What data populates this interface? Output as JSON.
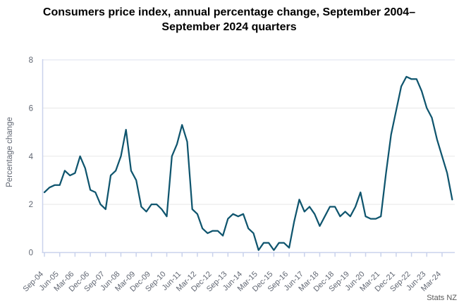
{
  "chart_data": {
    "type": "line",
    "title": "Consumers price index, annual percentage change, September 2004–September 2024 quarters",
    "ylabel": "Percentage change",
    "xlabel": "",
    "source": "Stats NZ",
    "ylim": [
      0,
      8
    ],
    "yticks": [
      0,
      2,
      4,
      6,
      8
    ],
    "grid": "horizontal",
    "legend": "none",
    "x_start": "Sep-04",
    "x_end": "Sep-24",
    "x_frequency": "quarterly",
    "x_tick_step": 3,
    "x_tick_labels": [
      "Sep-04",
      "Jun-05",
      "Mar-06",
      "Dec-06",
      "Sep-07",
      "Jun-08",
      "Mar-09",
      "Dec-09",
      "Sep-10",
      "Jun-11",
      "Mar-12",
      "Dec-12",
      "Sep-13",
      "Jun-14",
      "Mar-15",
      "Dec-15",
      "Sep-16",
      "Jun-17",
      "Mar-18",
      "Dec-18",
      "Sep-19",
      "Jun-20",
      "Mar-21",
      "Dec-21",
      "Sep-22",
      "Jun-23",
      "Mar-24"
    ],
    "values": [
      2.5,
      2.7,
      2.8,
      2.8,
      3.4,
      3.2,
      3.3,
      4.0,
      3.5,
      2.6,
      2.5,
      2.0,
      1.8,
      3.2,
      3.4,
      4.0,
      5.1,
      3.4,
      3.0,
      1.9,
      1.7,
      2.0,
      2.0,
      1.8,
      1.5,
      4.0,
      4.5,
      5.3,
      4.6,
      1.8,
      1.6,
      1.0,
      0.8,
      0.9,
      0.9,
      0.7,
      1.4,
      1.6,
      1.5,
      1.6,
      1.0,
      0.8,
      0.1,
      0.4,
      0.4,
      0.1,
      0.4,
      0.4,
      0.2,
      1.3,
      2.2,
      1.7,
      1.9,
      1.6,
      1.1,
      1.5,
      1.9,
      1.9,
      1.5,
      1.7,
      1.5,
      1.9,
      2.5,
      1.5,
      1.4,
      1.4,
      1.5,
      3.3,
      4.9,
      5.9,
      6.9,
      7.3,
      7.2,
      7.2,
      6.7,
      6.0,
      5.6,
      4.7,
      4.0,
      3.3,
      2.2
    ],
    "colors": {
      "line": "#0f556e",
      "grid": "#e7e7e7",
      "frame_top": "#dce1ef",
      "axis": "#c9d2ec",
      "tick_text": "#606672",
      "title_text": "#000000",
      "source_text": "#595959",
      "background": "#ffffff"
    }
  }
}
